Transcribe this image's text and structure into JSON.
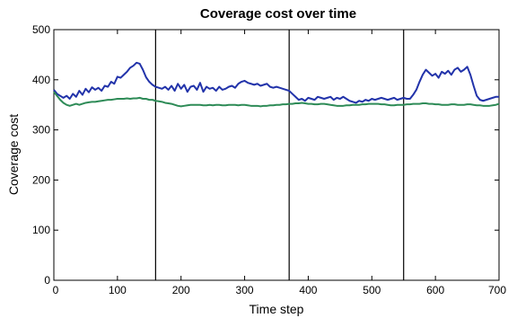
{
  "chart_data": {
    "type": "line",
    "title": "Coverage cost over time",
    "xlabel": "Time step",
    "ylabel": "Coverage cost",
    "xlim": [
      0,
      700
    ],
    "ylim": [
      0,
      500
    ],
    "xticks": [
      "0",
      "100",
      "200",
      "300",
      "400",
      "500",
      "600",
      "700"
    ],
    "yticks": [
      "0",
      "100",
      "200",
      "300",
      "400",
      "500"
    ],
    "vertical_lines_x": [
      160,
      370,
      550
    ],
    "grid": false,
    "legend": "none",
    "series": [
      {
        "color": "#2233aa",
        "x": [
          0,
          5,
          10,
          15,
          20,
          25,
          30,
          35,
          40,
          45,
          50,
          55,
          60,
          65,
          70,
          75,
          80,
          85,
          90,
          95,
          100,
          105,
          110,
          115,
          120,
          125,
          130,
          135,
          140,
          145,
          150,
          155,
          160,
          165,
          170,
          175,
          180,
          185,
          190,
          195,
          200,
          205,
          210,
          215,
          220,
          225,
          230,
          235,
          240,
          245,
          250,
          255,
          260,
          265,
          270,
          275,
          280,
          285,
          290,
          295,
          300,
          305,
          310,
          315,
          320,
          325,
          330,
          335,
          340,
          345,
          350,
          355,
          360,
          365,
          370,
          375,
          380,
          385,
          390,
          395,
          400,
          405,
          410,
          415,
          420,
          425,
          430,
          435,
          440,
          445,
          450,
          455,
          460,
          465,
          470,
          475,
          480,
          485,
          490,
          495,
          500,
          505,
          510,
          515,
          520,
          525,
          530,
          535,
          540,
          545,
          550,
          555,
          560,
          565,
          570,
          575,
          580,
          585,
          590,
          595,
          600,
          605,
          610,
          615,
          620,
          625,
          630,
          635,
          640,
          645,
          650,
          655,
          660,
          665,
          670,
          675,
          680,
          685,
          690,
          695,
          700
        ],
        "values": [
          380,
          372,
          368,
          364,
          368,
          362,
          372,
          366,
          378,
          370,
          382,
          375,
          385,
          380,
          384,
          378,
          388,
          386,
          396,
          392,
          406,
          404,
          410,
          416,
          424,
          428,
          434,
          432,
          420,
          405,
          396,
          390,
          386,
          384,
          382,
          386,
          380,
          388,
          378,
          392,
          382,
          390,
          376,
          386,
          388,
          380,
          394,
          376,
          386,
          382,
          384,
          378,
          386,
          380,
          382,
          386,
          388,
          384,
          392,
          396,
          398,
          394,
          392,
          390,
          392,
          388,
          390,
          392,
          386,
          384,
          386,
          384,
          382,
          380,
          378,
          372,
          366,
          360,
          362,
          358,
          364,
          362,
          360,
          366,
          364,
          362,
          364,
          366,
          360,
          364,
          362,
          366,
          362,
          358,
          356,
          354,
          358,
          356,
          360,
          358,
          362,
          360,
          362,
          364,
          362,
          360,
          362,
          364,
          360,
          362,
          364,
          362,
          362,
          370,
          380,
          396,
          410,
          420,
          414,
          408,
          412,
          404,
          416,
          412,
          418,
          410,
          420,
          424,
          416,
          420,
          426,
          410,
          388,
          368,
          360,
          358,
          360,
          362,
          364,
          366,
          366
        ]
      },
      {
        "color": "#2e8b57",
        "x": [
          0,
          5,
          10,
          15,
          20,
          25,
          30,
          35,
          40,
          45,
          50,
          55,
          60,
          65,
          70,
          75,
          80,
          85,
          90,
          95,
          100,
          105,
          110,
          115,
          120,
          125,
          130,
          135,
          140,
          145,
          150,
          155,
          160,
          165,
          170,
          175,
          180,
          185,
          190,
          195,
          200,
          205,
          210,
          215,
          220,
          225,
          230,
          235,
          240,
          245,
          250,
          255,
          260,
          265,
          270,
          275,
          280,
          285,
          290,
          295,
          300,
          305,
          310,
          315,
          320,
          325,
          330,
          335,
          340,
          345,
          350,
          355,
          360,
          365,
          370,
          375,
          380,
          385,
          390,
          395,
          400,
          405,
          410,
          415,
          420,
          425,
          430,
          435,
          440,
          445,
          450,
          455,
          460,
          465,
          470,
          475,
          480,
          485,
          490,
          495,
          500,
          505,
          510,
          515,
          520,
          525,
          530,
          535,
          540,
          545,
          550,
          555,
          560,
          565,
          570,
          575,
          580,
          585,
          590,
          595,
          600,
          605,
          610,
          615,
          620,
          625,
          630,
          635,
          640,
          645,
          650,
          655,
          660,
          665,
          670,
          675,
          680,
          685,
          690,
          695,
          700
        ],
        "values": [
          376,
          368,
          360,
          354,
          350,
          348,
          350,
          352,
          350,
          352,
          354,
          355,
          356,
          356,
          357,
          358,
          359,
          360,
          360,
          361,
          362,
          362,
          362,
          363,
          362,
          363,
          363,
          364,
          362,
          362,
          360,
          360,
          358,
          357,
          356,
          354,
          353,
          352,
          350,
          348,
          347,
          348,
          349,
          350,
          350,
          350,
          350,
          349,
          349,
          350,
          349,
          350,
          350,
          349,
          349,
          350,
          350,
          350,
          349,
          350,
          350,
          349,
          348,
          348,
          348,
          347,
          348,
          348,
          349,
          349,
          350,
          350,
          351,
          351,
          352,
          352,
          353,
          353,
          354,
          353,
          352,
          352,
          351,
          351,
          352,
          352,
          351,
          350,
          349,
          348,
          348,
          348,
          349,
          349,
          350,
          350,
          350,
          351,
          351,
          352,
          352,
          352,
          352,
          351,
          351,
          350,
          349,
          349,
          350,
          350,
          350,
          351,
          351,
          352,
          352,
          352,
          353,
          353,
          352,
          352,
          351,
          351,
          350,
          350,
          350,
          351,
          351,
          350,
          350,
          350,
          351,
          351,
          350,
          349,
          349,
          348,
          348,
          348,
          349,
          350,
          352
        ]
      }
    ]
  }
}
